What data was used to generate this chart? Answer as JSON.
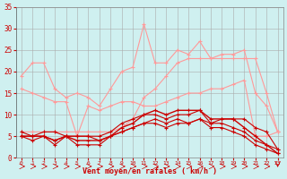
{
  "x": [
    0,
    1,
    2,
    3,
    4,
    5,
    6,
    7,
    8,
    9,
    10,
    11,
    12,
    13,
    14,
    15,
    16,
    17,
    18,
    19,
    20,
    21,
    22,
    23
  ],
  "pink_high": [
    19,
    22,
    22,
    16,
    14,
    15,
    14,
    12,
    16,
    20,
    21,
    31,
    22,
    22,
    25,
    24,
    27,
    23,
    24,
    24,
    25,
    15,
    12,
    6
  ],
  "pink_mid": [
    6,
    6,
    6,
    6,
    6,
    6,
    6,
    6,
    6,
    7,
    9,
    14,
    16,
    19,
    22,
    23,
    23,
    23,
    23,
    23,
    23,
    23,
    15,
    6
  ],
  "pink_low": [
    16,
    15,
    14,
    13,
    13,
    5,
    12,
    11,
    12,
    13,
    13,
    12,
    12,
    13,
    14,
    15,
    15,
    16,
    16,
    17,
    18,
    5,
    5,
    6
  ],
  "red_main": [
    5,
    5,
    5,
    4,
    5,
    4,
    4,
    4,
    5,
    7,
    8,
    10,
    11,
    10,
    11,
    11,
    11,
    9,
    9,
    9,
    7,
    5,
    3,
    1
  ],
  "red_upper": [
    6,
    5,
    6,
    6,
    5,
    5,
    5,
    5,
    6,
    8,
    9,
    10,
    10,
    9,
    10,
    10,
    11,
    8,
    9,
    9,
    9,
    7,
    6,
    2
  ],
  "red_lower": [
    5,
    4,
    5,
    3,
    5,
    3,
    3,
    3,
    5,
    6,
    7,
    8,
    9,
    8,
    9,
    8,
    9,
    7,
    7,
    6,
    5,
    3,
    2,
    1
  ],
  "red_bot": [
    5,
    5,
    5,
    4,
    5,
    5,
    5,
    4,
    5,
    6,
    7,
    8,
    8,
    7,
    8,
    8,
    9,
    8,
    8,
    7,
    6,
    4,
    3,
    2
  ],
  "bg_color": "#cff0f0",
  "grid_color": "#aaaaaa",
  "pink_color": "#ff9999",
  "dark_red": "#cc0000",
  "xlabel": "Vent moyen/en rafales ( km/h )",
  "ylim": [
    0,
    35
  ],
  "yticks": [
    0,
    5,
    10,
    15,
    20,
    25,
    30,
    35
  ],
  "xticks": [
    0,
    1,
    2,
    3,
    4,
    5,
    6,
    7,
    8,
    9,
    10,
    11,
    12,
    13,
    14,
    15,
    16,
    17,
    18,
    19,
    20,
    21,
    22,
    23
  ]
}
